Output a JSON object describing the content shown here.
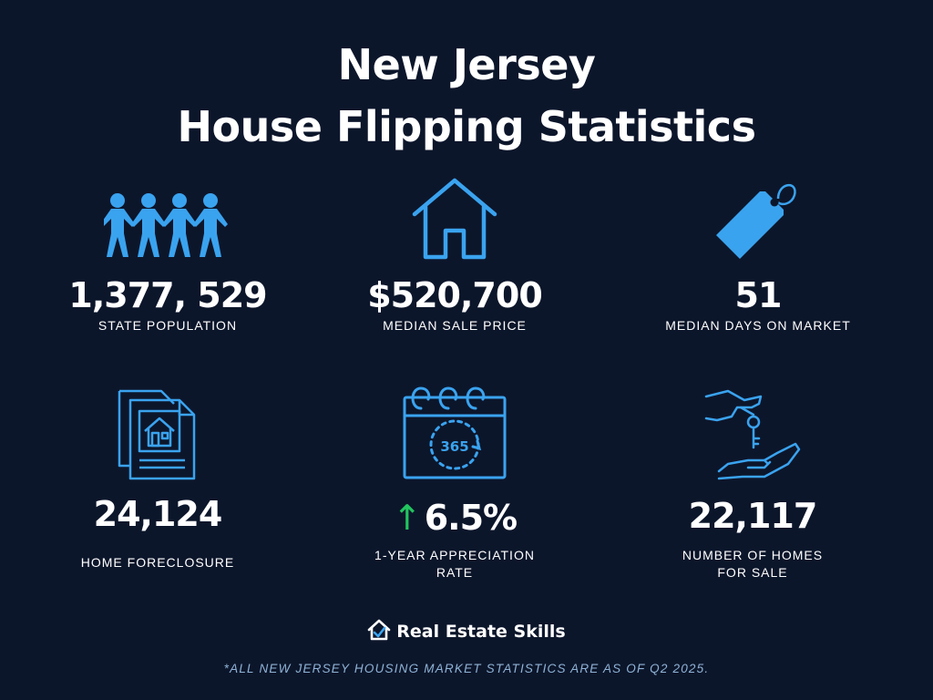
{
  "header": {
    "title_line1": "New Jersey",
    "title_line2": "House Flipping Statistics"
  },
  "stats": [
    {
      "icon": "people-chain-icon",
      "value": "1,377, 529",
      "label": "STATE POPULATION"
    },
    {
      "icon": "house-outline-icon",
      "value": "$520,700",
      "label": "MEDIAN SALE PRICE"
    },
    {
      "icon": "price-tag-icon",
      "value": "51",
      "label": "MEDIAN DAYS ON MARKET"
    },
    {
      "icon": "foreclosure-document-icon",
      "value": "24,124",
      "label": "HOME FORECLOSURE"
    },
    {
      "icon": "calendar-365-icon",
      "value": "6.5%",
      "label_line1": "1-YEAR APPRECIATION",
      "label_line2": "RATE",
      "trend": "up",
      "arrow": "↑"
    },
    {
      "icon": "hand-key-icon",
      "value": "22,117",
      "label_line1": "NUMBER OF HOMES",
      "label_line2": "FOR SALE"
    }
  ],
  "calendar_text": "365",
  "brand": {
    "name": "Real Estate Skills",
    "icon": "house-check-logo-icon"
  },
  "footnote": "*ALL NEW JERSEY HOUSING MARKET STATISTICS ARE AS OF Q2 2025.",
  "colors": {
    "background": "#0c162b",
    "icon_blue": "#3aa3ef",
    "text": "#ffffff",
    "trend_up": "#22c55e",
    "footnote": "#8fb3d6"
  }
}
